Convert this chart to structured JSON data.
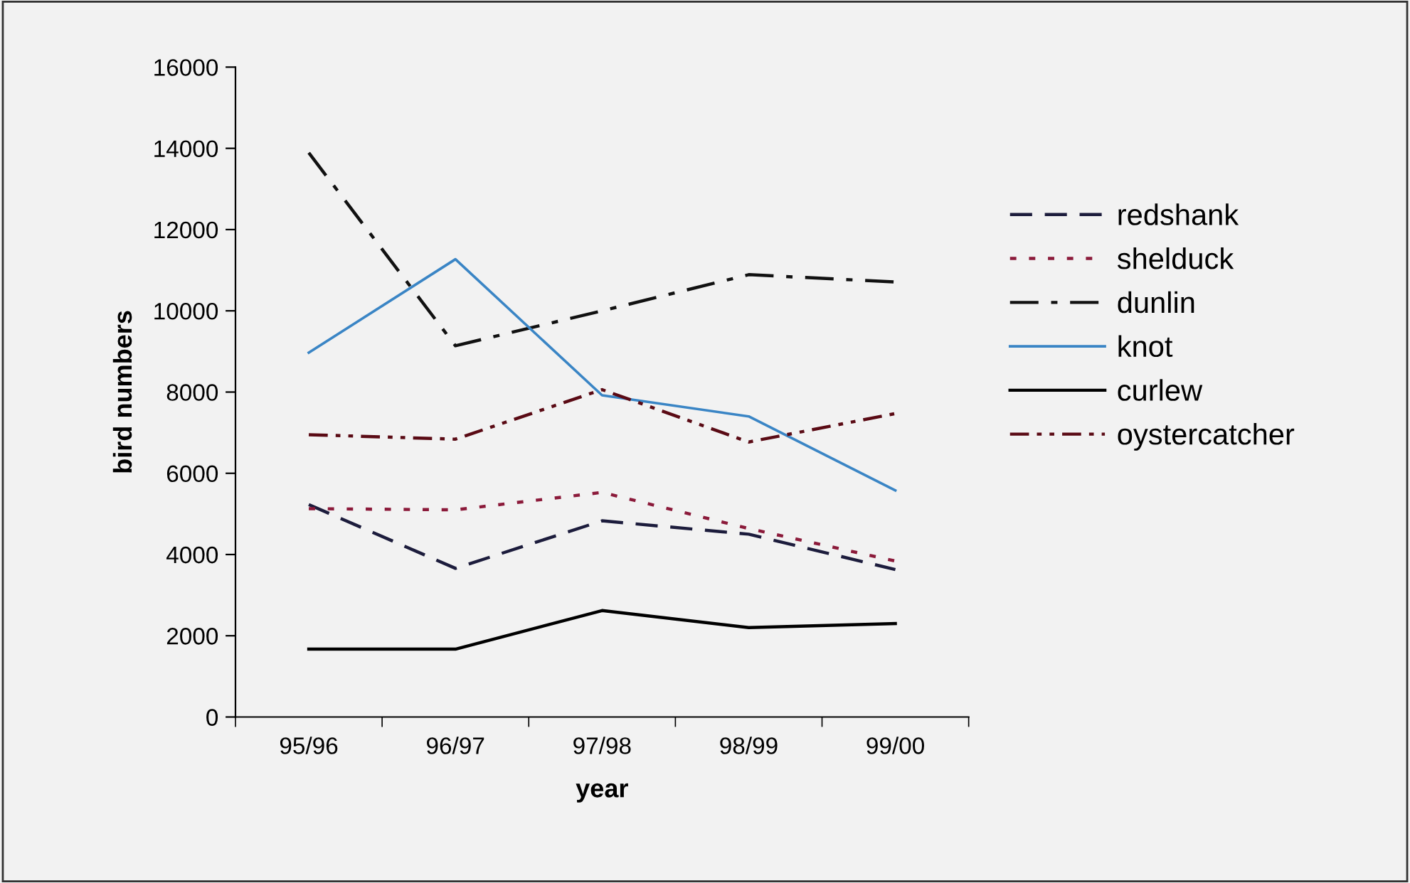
{
  "chart_data": {
    "type": "line",
    "xlabel": "year",
    "ylabel": "bird numbers",
    "categories": [
      "95/96",
      "96/97",
      "97/98",
      "98/99",
      "99/00"
    ],
    "ylim": [
      0,
      16000
    ],
    "yticks": [
      0,
      2000,
      4000,
      6000,
      8000,
      10000,
      12000,
      14000,
      16000
    ],
    "legend": "right",
    "grid": false,
    "marker": "none",
    "series": [
      {
        "name": "redshank",
        "color": "#1c1c3c",
        "line_style": "dashed",
        "values": [
          5230,
          3660,
          4830,
          4500,
          3630
        ]
      },
      {
        "name": "shelduck",
        "color": "#8b1a3a",
        "line_style": "dotted",
        "values": [
          5130,
          5100,
          5530,
          4640,
          3840
        ]
      },
      {
        "name": "dunlin",
        "color": "#111111",
        "line_style": "dashdot",
        "values": [
          13890,
          9140,
          10000,
          10890,
          10710
        ]
      },
      {
        "name": "knot",
        "color": "#3a85c5",
        "line_style": "solid",
        "values": [
          8970,
          11270,
          7920,
          7400,
          5580
        ]
      },
      {
        "name": "curlew",
        "color": "#000000",
        "line_style": "solid",
        "values": [
          1670,
          1670,
          2620,
          2200,
          2300
        ]
      },
      {
        "name": "oystercatcher",
        "color": "#5a0a14",
        "line_style": "dashdotdot",
        "values": [
          6950,
          6840,
          8060,
          6770,
          7470
        ]
      }
    ]
  }
}
